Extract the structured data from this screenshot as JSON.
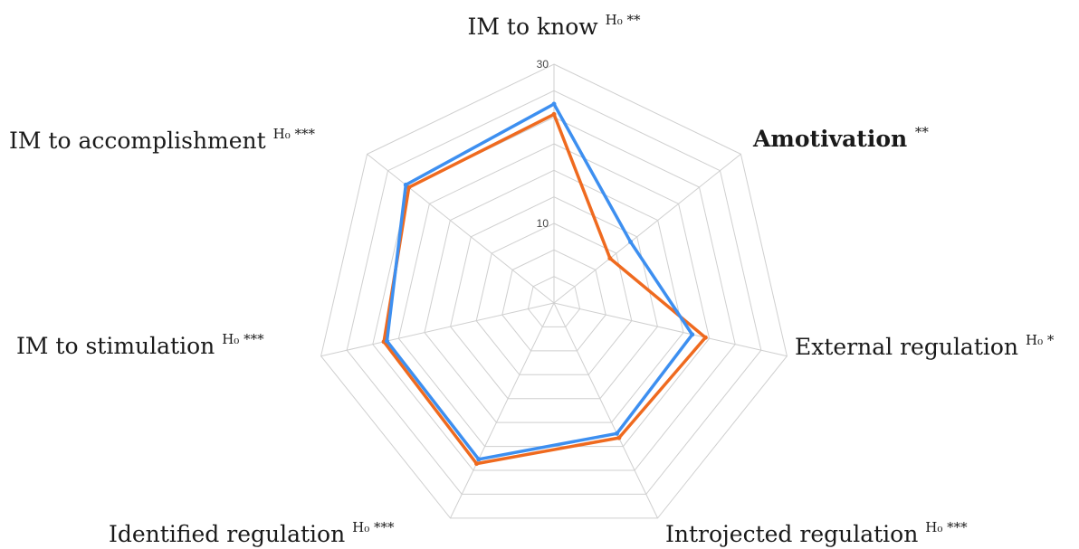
{
  "chart_data": {
    "type": "radar",
    "axes": [
      {
        "label": "IM to know",
        "mark": "H₀",
        "sig": "**",
        "bold": false
      },
      {
        "label": "Amotivation",
        "mark": "",
        "sig": "**",
        "bold": true
      },
      {
        "label": "External regulation",
        "mark": "H₀",
        "sig": "*",
        "bold": false
      },
      {
        "label": "Introjected regulation",
        "mark": "H₀",
        "sig": "***",
        "bold": false
      },
      {
        "label": "Identified regulation",
        "mark": "H₀",
        "sig": "***",
        "bold": false
      },
      {
        "label": "IM to stimulation",
        "mark": "H₀",
        "sig": "***",
        "bold": false
      },
      {
        "label": "IM to accomplishment",
        "mark": "H₀",
        "sig": "***",
        "bold": false
      }
    ],
    "rlim": [
      0,
      30
    ],
    "tick_labels": [
      "10",
      "30"
    ],
    "tick_values": [
      10,
      30
    ],
    "grid_levels": 9,
    "series": [
      {
        "color": "#ef6a1f",
        "values": [
          23.7,
          9.0,
          19.5,
          18.8,
          22.4,
          21.9,
          23.3
        ]
      },
      {
        "color": "#3d8ff0",
        "values": [
          25.0,
          12.3,
          17.8,
          18.2,
          21.8,
          21.5,
          23.8
        ]
      }
    ],
    "grid": true,
    "legend": "none"
  }
}
